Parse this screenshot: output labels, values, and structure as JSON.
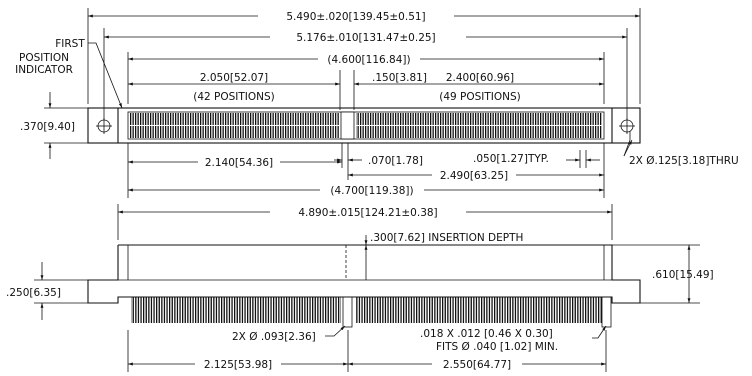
{
  "top_view": {
    "overall_length": "5.490±.020[139.45±0.51]",
    "mount_hole_spacing": "5.176±.010[131.47±0.25]",
    "contact_span_top": "(4.600[116.84])",
    "left_section_length": "2.050[52.07]",
    "left_section_positions": "(42 POSITIONS)",
    "key_offset": ".150[3.81]",
    "right_section_length": "2.400[60.96]",
    "right_section_positions": "(49 POSITIONS)",
    "first_position_indicator": [
      "FIRST",
      "POSITION",
      "INDICATOR"
    ],
    "body_height": ".370[9.40]",
    "left_to_key": "2.140[54.36]",
    "key_width": ".070[1.78]",
    "pitch": ".050[1.27]TYP.",
    "right_from_key": "2.490[63.25]",
    "contact_span_bottom": "(4.700[119.38])",
    "mount_holes": "2X Ø.125[3.18]THRU"
  },
  "front_view": {
    "overall_length": "4.890±.015[124.21±0.38]",
    "insertion_depth": ".300[7.62] INSERTION DEPTH",
    "body_height": ".610[15.49]",
    "flange_height": ".250[6.35]",
    "posts": "2X Ø .093[2.36]",
    "contact_tail": ".018 X .012 [0.46 X 0.30]",
    "contact_fit": "FITS Ø .040 [1.02] MIN.",
    "left_to_key": "2.125[53.98]",
    "right_from_key": "2.550[64.77]"
  }
}
